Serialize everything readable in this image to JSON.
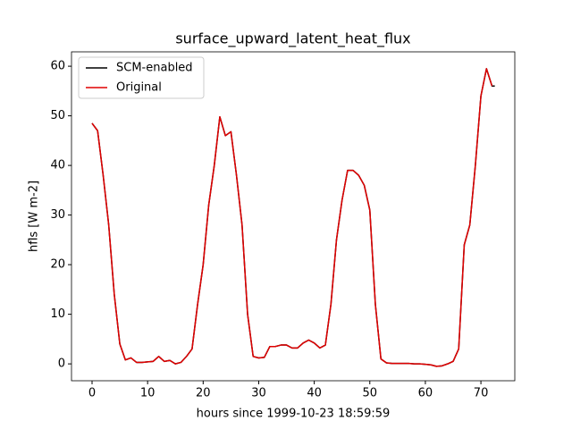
{
  "chart_data": {
    "type": "line",
    "title": "surface_upward_latent_heat_flux",
    "xlabel": "hours since 1999-10-23 18:59:59",
    "ylabel": "hfls [W m-2]",
    "x": [
      0,
      1,
      2,
      3,
      4,
      5,
      6,
      7,
      8,
      9,
      10,
      11,
      12,
      13,
      14,
      15,
      16,
      17,
      18,
      19,
      20,
      21,
      22,
      23,
      24,
      25,
      26,
      27,
      28,
      29,
      30,
      31,
      32,
      33,
      34,
      35,
      36,
      37,
      38,
      39,
      40,
      41,
      42,
      43,
      44,
      45,
      46,
      47,
      48,
      49,
      50,
      51,
      52,
      53,
      54,
      55,
      56,
      57,
      58,
      59,
      60,
      61,
      62,
      63,
      64,
      65,
      66,
      67,
      68,
      69,
      70,
      71,
      72,
      72.5
    ],
    "series": [
      {
        "name": "SCM-enabled",
        "color": "#000000",
        "values": [
          48.5,
          47,
          38,
          28,
          14,
          4,
          0.8,
          1.2,
          0.3,
          0.3,
          0.4,
          0.5,
          1.5,
          0.5,
          0.7,
          0,
          0.3,
          1.5,
          3,
          12,
          20,
          32,
          40,
          49.8,
          46,
          46.8,
          38,
          28,
          10,
          1.5,
          1.2,
          1.3,
          3.5,
          3.5,
          3.8,
          3.8,
          3.2,
          3.2,
          4.2,
          4.8,
          4.2,
          3.2,
          3.8,
          12,
          25,
          33,
          39,
          39,
          38,
          36,
          31,
          12,
          1,
          0.2,
          0.1,
          0.1,
          0.1,
          0.1,
          0,
          0,
          -0.1,
          -0.2,
          -0.5,
          -0.4,
          0,
          0.5,
          3,
          24,
          28,
          40,
          54,
          59.5,
          56,
          56
        ]
      },
      {
        "name": "Original",
        "color": "#e00000",
        "values": [
          48.5,
          47,
          38,
          28,
          14,
          4,
          0.8,
          1.2,
          0.3,
          0.3,
          0.4,
          0.5,
          1.5,
          0.5,
          0.7,
          0,
          0.3,
          1.5,
          3,
          12,
          20,
          32,
          40,
          49.8,
          46,
          46.8,
          38,
          28,
          10,
          1.5,
          1.2,
          1.3,
          3.5,
          3.5,
          3.8,
          3.8,
          3.2,
          3.2,
          4.2,
          4.8,
          4.2,
          3.2,
          3.8,
          12,
          25,
          33,
          39,
          39,
          38,
          36,
          31,
          12,
          1,
          0.2,
          0.1,
          0.1,
          0.1,
          0.1,
          0,
          0,
          -0.1,
          -0.2,
          -0.5,
          -0.4,
          0,
          0.5,
          3,
          24,
          28,
          40,
          54,
          59.5,
          56,
          null
        ]
      }
    ],
    "xlim": [
      -3.7,
      76.1
    ],
    "xticks": [
      0,
      10,
      20,
      30,
      40,
      50,
      60,
      70
    ],
    "ylim": [
      -3.4,
      62.9
    ],
    "yticks": [
      0,
      10,
      20,
      30,
      40,
      50,
      60
    ],
    "legend": "upper left"
  }
}
